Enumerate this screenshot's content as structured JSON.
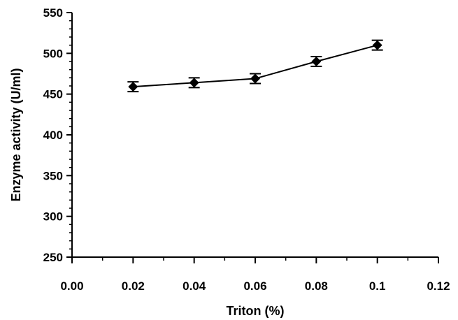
{
  "chart_data": {
    "type": "line",
    "title": "",
    "xlabel": "Triton (%)",
    "ylabel": "Enzyme activity (U/ml)",
    "xlim": [
      0.0,
      0.12
    ],
    "ylim": [
      250,
      550
    ],
    "x_ticks": [
      0.0,
      0.02,
      0.04,
      0.06,
      0.08,
      0.1,
      0.12
    ],
    "x_tick_labels": [
      "0.00",
      "0.02",
      "0.04",
      "0.06",
      "0.08",
      "0.1",
      "0.12"
    ],
    "y_ticks": [
      250,
      300,
      350,
      400,
      450,
      500,
      550
    ],
    "y_tick_labels": [
      "250",
      "300",
      "350",
      "400",
      "450",
      "500",
      "550"
    ],
    "grid": false,
    "series": [
      {
        "x": [
          0.02,
          0.04,
          0.06,
          0.08,
          0.1
        ],
        "y": [
          459,
          464,
          469,
          490,
          510
        ],
        "error": [
          6,
          6,
          6,
          6,
          6
        ],
        "marker": "diamond",
        "color": "#000000"
      }
    ]
  }
}
